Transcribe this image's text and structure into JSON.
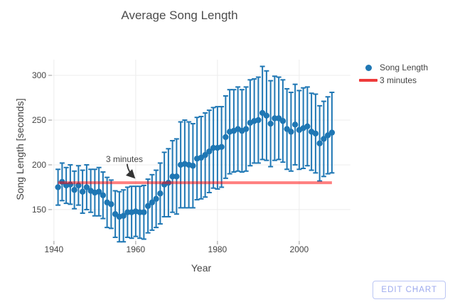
{
  "header": {
    "title": "Average Song Length"
  },
  "legend": {
    "items": [
      {
        "label": "Song Length",
        "marker": "dot"
      },
      {
        "label": "3 minutes",
        "marker": "line"
      }
    ]
  },
  "annotation": {
    "text": "3 minutes"
  },
  "edit_button": {
    "label": "EDIT CHART"
  },
  "colors": {
    "series_blue": "#1f77b4",
    "threshold_line": "rgba(255,0,0,0.5)",
    "legend_red": "#ee3b3b",
    "grid": "#ececec",
    "tick": "#999999",
    "text": "#444444",
    "arrow": "#333333",
    "button": "#9daaee"
  },
  "chart_data": {
    "type": "scatter",
    "title": "Average Song Length",
    "xlabel": "Year",
    "ylabel": "Song Length [seconds]",
    "xlim": [
      1939.5,
      2012.5
    ],
    "ylim": [
      115,
      317.5
    ],
    "xticks": [
      1940,
      1960,
      1980,
      2000
    ],
    "yticks": [
      150,
      200,
      250,
      300
    ],
    "grid": true,
    "legend_position": "top-right",
    "series": [
      {
        "name": "Song Length",
        "type": "scatter-errorbars",
        "x": [
          1941,
          1942,
          1943,
          1944,
          1945,
          1946,
          1947,
          1948,
          1949,
          1950,
          1951,
          1952,
          1953,
          1954,
          1955,
          1956,
          1957,
          1958,
          1959,
          1960,
          1961,
          1962,
          1963,
          1964,
          1965,
          1966,
          1967,
          1968,
          1969,
          1970,
          1971,
          1972,
          1973,
          1974,
          1975,
          1976,
          1977,
          1978,
          1979,
          1980,
          1981,
          1982,
          1983,
          1984,
          1985,
          1986,
          1987,
          1988,
          1989,
          1990,
          1991,
          1992,
          1993,
          1994,
          1995,
          1996,
          1997,
          1998,
          1999,
          2000,
          2001,
          2002,
          2003,
          2004,
          2005,
          2006,
          2007,
          2008
        ],
        "y": [
          175,
          181,
          177,
          178,
          172,
          177,
          170,
          175,
          171,
          169,
          170,
          166,
          158,
          156,
          145,
          142,
          143,
          147,
          147,
          148,
          147,
          147,
          154,
          158,
          162,
          168,
          178,
          180,
          187,
          187,
          200,
          201,
          200,
          199,
          207,
          208,
          211,
          215,
          219,
          219,
          220,
          231,
          237,
          238,
          240,
          238,
          240,
          247,
          249,
          250,
          258,
          255,
          246,
          252,
          252,
          249,
          240,
          237,
          245,
          239,
          241,
          243,
          237,
          235,
          224,
          229,
          233,
          236
        ],
        "error_y": [
          20,
          21,
          20,
          22,
          21,
          22,
          24,
          25,
          24,
          26,
          27,
          26,
          28,
          27,
          26,
          28,
          29,
          28,
          29,
          28,
          29,
          30,
          30,
          31,
          32,
          34,
          36,
          38,
          40,
          42,
          48,
          49,
          48,
          47,
          46,
          46,
          47,
          46,
          45,
          46,
          45,
          46,
          47,
          46,
          47,
          46,
          47,
          48,
          47,
          48,
          52,
          50,
          48,
          47,
          46,
          46,
          45,
          44,
          45,
          44,
          45,
          44,
          43,
          44,
          42,
          42,
          43,
          45
        ]
      },
      {
        "name": "3 minutes",
        "type": "line",
        "y": 180,
        "x_span": [
          1941,
          2008
        ]
      }
    ],
    "annotations": [
      {
        "text": "3 minutes",
        "arrow_tail": {
          "x": 1957.9,
          "y": 201
        },
        "arrow_tip": {
          "x": 1959.6,
          "y": 186
        }
      }
    ]
  }
}
